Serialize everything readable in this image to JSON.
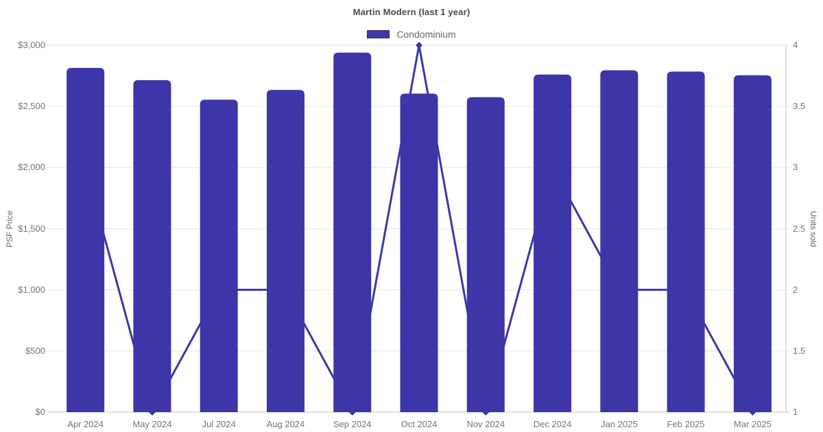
{
  "title": "Martin Modern (last 1 year)",
  "legend": {
    "items": [
      {
        "label": "Condominium",
        "color": "#3d35a8"
      }
    ]
  },
  "colors": {
    "bar": "#3d35a8",
    "line": "#3d35a8",
    "marker": "#3d35a8",
    "grid": "#e8e8e8",
    "axis_line": "#cfcfcf",
    "tick_text": "#757575",
    "axis_title_text": "#666666",
    "title_text": "#4a4a4a"
  },
  "chart_data": {
    "type": "bar",
    "subtype": "combo-bar-line-dual-axis",
    "title": "Martin Modern (last 1 year)",
    "categories": [
      "Apr 2024",
      "May 2024",
      "Jul 2024",
      "Aug 2024",
      "Sep 2024",
      "Oct 2024",
      "Nov 2024",
      "Dec 2024",
      "Jan 2025",
      "Feb 2025",
      "Mar 2025"
    ],
    "series": [
      {
        "name": "Condominium",
        "type": "bar",
        "axis": "left",
        "values": [
          2815,
          2715,
          2555,
          2635,
          2940,
          2605,
          2575,
          2760,
          2795,
          2785,
          2755
        ]
      },
      {
        "name": "Units sold",
        "type": "line",
        "axis": "right",
        "values": [
          3,
          1,
          2,
          2,
          1,
          4,
          1,
          3,
          2,
          2,
          1
        ]
      }
    ],
    "left_axis": {
      "title": "PSF Price",
      "min": 0,
      "max": 3000,
      "step": 500,
      "tick_labels_top_to_bottom": [
        "$3,000",
        "$2,500",
        "$2,000",
        "$1,500",
        "$1,000",
        "$500",
        "$0"
      ]
    },
    "right_axis": {
      "title": "Units sold",
      "min": 1,
      "max": 4,
      "step": 0.5,
      "tick_labels_top_to_bottom": [
        "4",
        "3.5",
        "3",
        "2.5",
        "2",
        "1.5",
        "1"
      ]
    },
    "grid": true,
    "legend_position": "top"
  }
}
